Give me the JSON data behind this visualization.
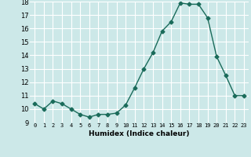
{
  "x": [
    0,
    1,
    2,
    3,
    4,
    5,
    6,
    7,
    8,
    9,
    10,
    11,
    12,
    13,
    14,
    15,
    16,
    17,
    18,
    19,
    20,
    21,
    22,
    23
  ],
  "y": [
    10.4,
    10.0,
    10.6,
    10.4,
    10.0,
    9.6,
    9.4,
    9.6,
    9.6,
    9.7,
    10.3,
    11.6,
    13.0,
    14.2,
    15.8,
    16.5,
    17.9,
    17.8,
    17.8,
    16.8,
    13.9,
    12.5,
    11.0,
    11.0
  ],
  "xlabel": "Humidex (Indice chaleur)",
  "ylim": [
    9,
    18
  ],
  "xlim": [
    -0.5,
    23.5
  ],
  "yticks": [
    9,
    10,
    11,
    12,
    13,
    14,
    15,
    16,
    17,
    18
  ],
  "xticks": [
    0,
    1,
    2,
    3,
    4,
    5,
    6,
    7,
    8,
    9,
    10,
    11,
    12,
    13,
    14,
    15,
    16,
    17,
    18,
    19,
    20,
    21,
    22,
    23
  ],
  "line_color": "#1a6b5a",
  "marker": "D",
  "marker_size": 2.5,
  "bg_color": "#cce8e8",
  "grid_color": "#ffffff"
}
